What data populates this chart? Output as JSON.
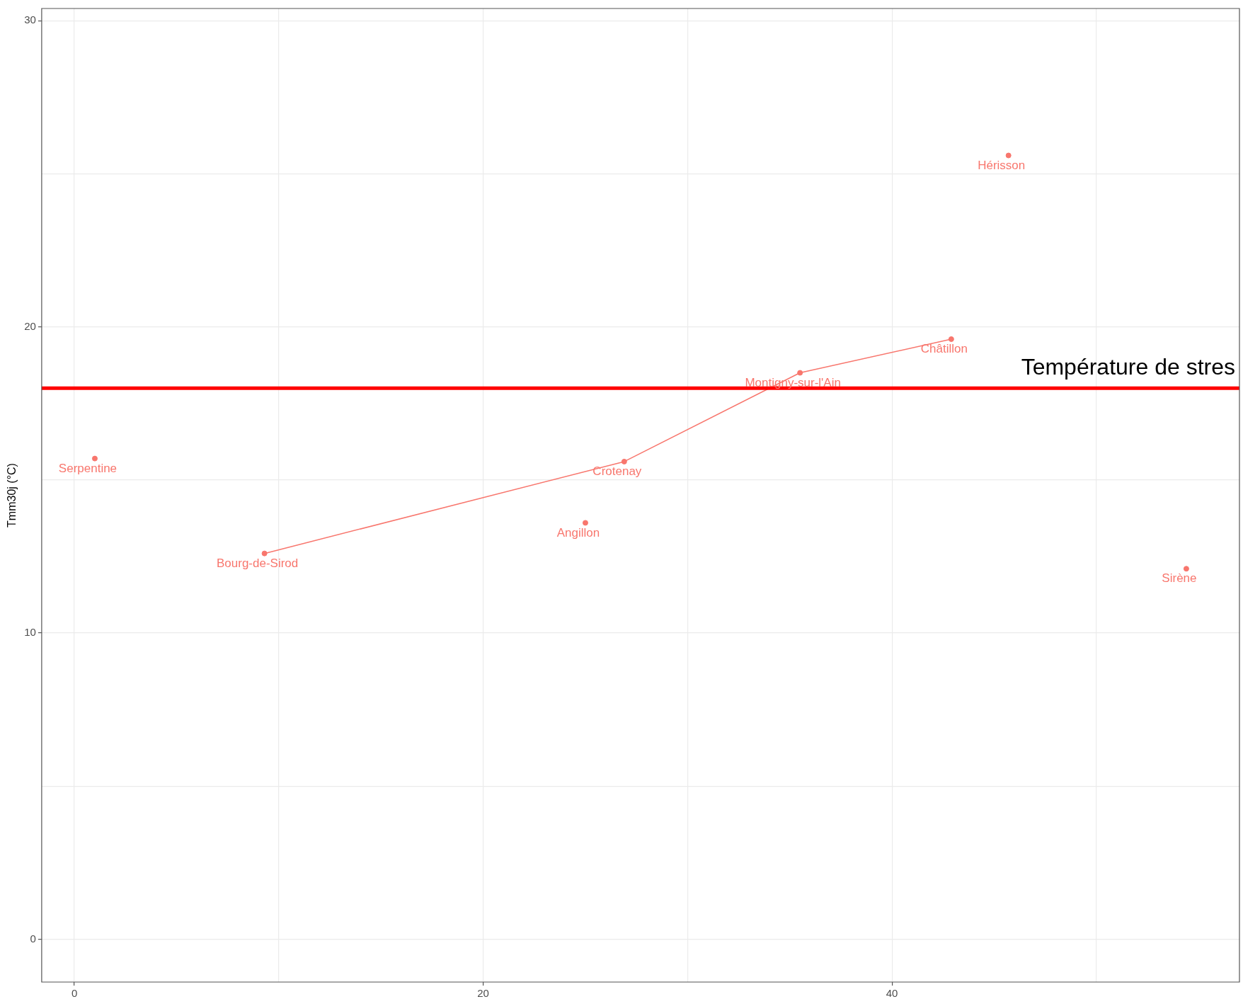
{
  "chart_data": {
    "type": "scatter",
    "ylabel": "Tmm30j (°C)",
    "xlim": [
      -1.6,
      57
    ],
    "ylim": [
      -1.4,
      30.4
    ],
    "xticks": [
      0,
      {
        "value": 10,
        "label": null
      },
      20,
      {
        "value": 30,
        "label": null
      },
      40,
      {
        "value": 50,
        "label": null
      }
    ],
    "yticks": [
      0,
      {
        "value": 5,
        "label": null
      },
      10,
      {
        "value": 15,
        "label": null
      },
      20,
      {
        "value": 25,
        "label": null
      },
      30
    ],
    "grid": true,
    "marker": "circle",
    "series": [
      {
        "color": "#f8766d",
        "x": [
          1.0,
          9.3,
          25.0,
          26.9,
          35.5,
          42.9,
          45.7,
          54.4
        ],
        "values": [
          15.7,
          12.6,
          13.6,
          15.6,
          18.5,
          19.6,
          25.6,
          12.1
        ]
      },
      {
        "type": "line",
        "marker": "none",
        "color": "#f8766d",
        "x": [
          9.3,
          26.9,
          35.5,
          42.9
        ],
        "values": [
          12.6,
          15.6,
          18.5,
          19.6
        ]
      }
    ],
    "ref_lines": [
      {
        "axis": "y",
        "value": 18,
        "label": "Température de stres",
        "color": "#ff0000"
      }
    ],
    "annotations": [
      {
        "text": "Serpentine",
        "x": 1.0,
        "y": 15.7
      },
      {
        "text": "Bourg-de-Sirod",
        "x": 9.3,
        "y": 12.6
      },
      {
        "text": "Angillon",
        "x": 25.0,
        "y": 13.6
      },
      {
        "text": "Crotenay",
        "x": 26.9,
        "y": 15.6
      },
      {
        "text": "Montigny-sur-l'Ain",
        "x": 35.5,
        "y": 18.5
      },
      {
        "text": "Châtillon",
        "x": 42.9,
        "y": 19.6
      },
      {
        "text": "Hérisson",
        "x": 45.7,
        "y": 25.6
      },
      {
        "text": "Sirène",
        "x": 54.4,
        "y": 12.1
      }
    ]
  }
}
